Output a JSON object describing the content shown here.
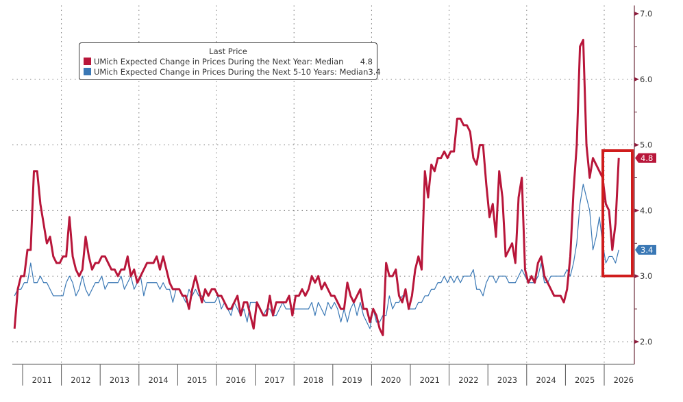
{
  "chart_data": {
    "type": "line",
    "title": "",
    "xlabel": "",
    "ylabel": "",
    "ylim": [
      1.7,
      7.2
    ],
    "y_ticks": [
      "2.0",
      "3.0",
      "4.0",
      "5.0",
      "6.0",
      "7.0"
    ],
    "y_axis_side": "right",
    "x_tick_labels": [
      "2011",
      "2012",
      "2013",
      "2014",
      "2015",
      "2016",
      "2017",
      "2018",
      "2019",
      "2020",
      "2021",
      "2022",
      "2023",
      "2024",
      "2025",
      "2026"
    ],
    "grid": true,
    "legend": {
      "title": "Last Price",
      "placement": "top-left"
    },
    "start_month": "2010-10",
    "series": [
      {
        "name": "UMich Expected Change in Prices During the Next Year: Median",
        "last_value": "4.8",
        "color": "#b8163a",
        "values": [
          2.2,
          2.8,
          3.0,
          3.0,
          3.4,
          3.4,
          4.6,
          4.6,
          4.1,
          3.8,
          3.5,
          3.6,
          3.3,
          3.2,
          3.2,
          3.3,
          3.3,
          3.9,
          3.3,
          3.1,
          3.0,
          3.1,
          3.6,
          3.3,
          3.1,
          3.2,
          3.2,
          3.3,
          3.3,
          3.2,
          3.1,
          3.1,
          3.0,
          3.1,
          3.1,
          3.3,
          3.0,
          3.1,
          2.9,
          3.0,
          3.1,
          3.2,
          3.2,
          3.2,
          3.3,
          3.1,
          3.3,
          3.1,
          2.9,
          2.8,
          2.8,
          2.8,
          2.7,
          2.7,
          2.5,
          2.8,
          3.0,
          2.8,
          2.6,
          2.8,
          2.7,
          2.8,
          2.8,
          2.7,
          2.7,
          2.6,
          2.5,
          2.5,
          2.6,
          2.7,
          2.4,
          2.6,
          2.6,
          2.4,
          2.2,
          2.6,
          2.5,
          2.4,
          2.4,
          2.7,
          2.4,
          2.6,
          2.6,
          2.6,
          2.6,
          2.7,
          2.4,
          2.7,
          2.7,
          2.8,
          2.7,
          2.8,
          3.0,
          2.9,
          3.0,
          2.8,
          2.9,
          2.8,
          2.7,
          2.7,
          2.6,
          2.5,
          2.5,
          2.9,
          2.7,
          2.6,
          2.7,
          2.8,
          2.5,
          2.5,
          2.3,
          2.5,
          2.4,
          2.2,
          2.1,
          3.2,
          3.0,
          3.0,
          3.1,
          2.7,
          2.6,
          2.8,
          2.5,
          2.7,
          3.1,
          3.3,
          3.1,
          4.6,
          4.2,
          4.7,
          4.6,
          4.8,
          4.8,
          4.9,
          4.8,
          4.9,
          4.9,
          5.4,
          5.4,
          5.3,
          5.3,
          5.2,
          4.8,
          4.7,
          5.0,
          5.0,
          4.4,
          3.9,
          4.1,
          3.6,
          4.6,
          4.2,
          3.3,
          3.4,
          3.5,
          3.2,
          4.2,
          4.5,
          3.1,
          2.9,
          3.0,
          2.9,
          3.2,
          3.3,
          3.0,
          2.9,
          2.8,
          2.7,
          2.7,
          2.7,
          2.6,
          2.8,
          3.3,
          4.3,
          5.0,
          6.5,
          6.6,
          5.0,
          4.5,
          4.8,
          4.7,
          4.6,
          4.5,
          4.1,
          4.0,
          3.4,
          3.8,
          4.8
        ]
      },
      {
        "name": "UMich Expected Change in Prices During the Next 5-10 Years: Median",
        "last_value": "3.4",
        "color": "#3a78b5",
        "values": [
          2.7,
          2.8,
          2.8,
          2.9,
          2.9,
          3.2,
          2.9,
          2.9,
          3.0,
          2.9,
          2.9,
          2.8,
          2.7,
          2.7,
          2.7,
          2.7,
          2.9,
          3.0,
          2.9,
          2.7,
          2.8,
          3.0,
          2.8,
          2.7,
          2.8,
          2.9,
          2.9,
          3.0,
          2.8,
          2.9,
          2.9,
          2.9,
          2.9,
          3.0,
          2.8,
          2.9,
          3.0,
          2.8,
          2.9,
          3.0,
          2.7,
          2.9,
          2.9,
          2.9,
          2.9,
          2.8,
          2.9,
          2.8,
          2.8,
          2.6,
          2.8,
          2.8,
          2.7,
          2.6,
          2.8,
          2.7,
          2.8,
          2.7,
          2.7,
          2.6,
          2.6,
          2.6,
          2.6,
          2.7,
          2.5,
          2.6,
          2.5,
          2.4,
          2.6,
          2.5,
          2.4,
          2.5,
          2.3,
          2.6,
          2.6,
          2.6,
          2.5,
          2.4,
          2.5,
          2.5,
          2.4,
          2.4,
          2.5,
          2.6,
          2.5,
          2.5,
          2.5,
          2.5,
          2.5,
          2.5,
          2.5,
          2.5,
          2.6,
          2.4,
          2.6,
          2.5,
          2.4,
          2.6,
          2.5,
          2.6,
          2.5,
          2.3,
          2.5,
          2.3,
          2.5,
          2.6,
          2.4,
          2.6,
          2.4,
          2.3,
          2.2,
          2.5,
          2.3,
          2.3,
          2.4,
          2.4,
          2.7,
          2.5,
          2.6,
          2.6,
          2.7,
          2.7,
          2.5,
          2.5,
          2.5,
          2.6,
          2.6,
          2.7,
          2.7,
          2.8,
          2.8,
          2.9,
          2.9,
          3.0,
          2.9,
          3.0,
          2.9,
          3.0,
          2.9,
          3.0,
          3.0,
          3.0,
          3.1,
          2.8,
          2.8,
          2.7,
          2.9,
          3.0,
          3.0,
          2.9,
          3.0,
          3.0,
          3.0,
          2.9,
          2.9,
          2.9,
          3.0,
          3.1,
          3.0,
          2.9,
          2.9,
          2.9,
          3.0,
          3.2,
          2.9,
          2.9,
          3.0,
          3.0,
          3.0,
          3.0,
          3.0,
          3.1,
          3.0,
          3.2,
          3.5,
          4.1,
          4.4,
          4.2,
          4.0,
          3.4,
          3.6,
          3.9,
          3.5,
          3.2,
          3.3,
          3.3,
          3.2,
          3.4
        ]
      }
    ],
    "highlight_box_color": "#d01c1c"
  }
}
